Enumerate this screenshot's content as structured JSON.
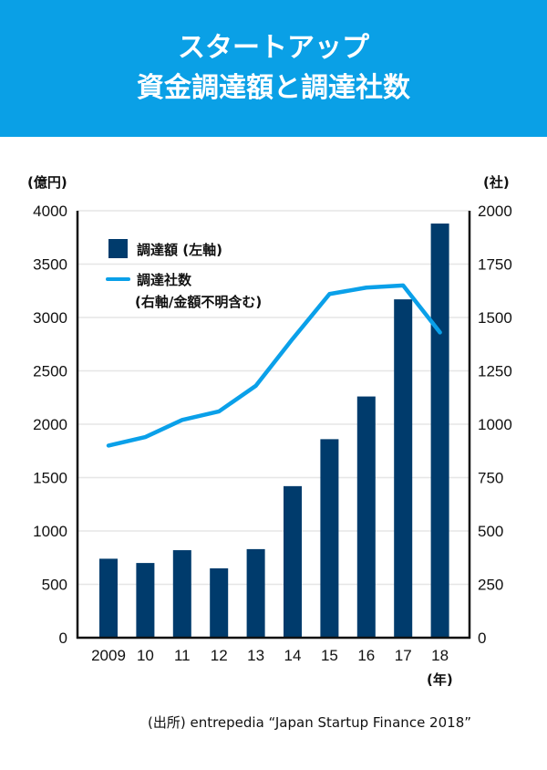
{
  "header": {
    "title_line1": "スタートアップ",
    "title_line2": "資金調達額と調達社数",
    "background": "#0aa0e6"
  },
  "colors": {
    "bar": "#003b6c",
    "line": "#0aa0e9",
    "grid": "#e6e6e6",
    "axis": "#111111"
  },
  "chart_data": {
    "type": "bar+line",
    "title": "スタートアップ資金調達額と調達社数",
    "categories": [
      "2009",
      "10",
      "11",
      "12",
      "13",
      "14",
      "15",
      "16",
      "17",
      "18"
    ],
    "xlabel": "(年)",
    "y_left": {
      "label": "(億円)",
      "range": [
        0,
        4000
      ],
      "ticks": [
        0,
        500,
        1000,
        1500,
        2000,
        2500,
        3000,
        3500,
        4000
      ]
    },
    "y_right": {
      "label": "(社)",
      "range": [
        0,
        2000
      ],
      "ticks": [
        0,
        250,
        500,
        750,
        1000,
        1250,
        1500,
        1750,
        2000
      ]
    },
    "grid": true,
    "legend_position": "top-left",
    "series": [
      {
        "name": "調達額 (左軸)",
        "type": "bar",
        "axis": "left",
        "values": [
          740,
          700,
          820,
          650,
          830,
          1420,
          1860,
          2260,
          3170,
          3880
        ]
      },
      {
        "name": "調達社数\n(右軸/金額不明含む)",
        "type": "line",
        "axis": "right",
        "values": [
          900,
          940,
          1020,
          1060,
          1180,
          1400,
          1610,
          1640,
          1650,
          1430
        ]
      }
    ]
  },
  "legend": {
    "bar_label": "調達額 (左軸)",
    "line_label_1": "調達社数",
    "line_label_2": "(右軸/金額不明含む)"
  },
  "source": "(出所) entrepedia “Japan Startup Finance 2018”"
}
